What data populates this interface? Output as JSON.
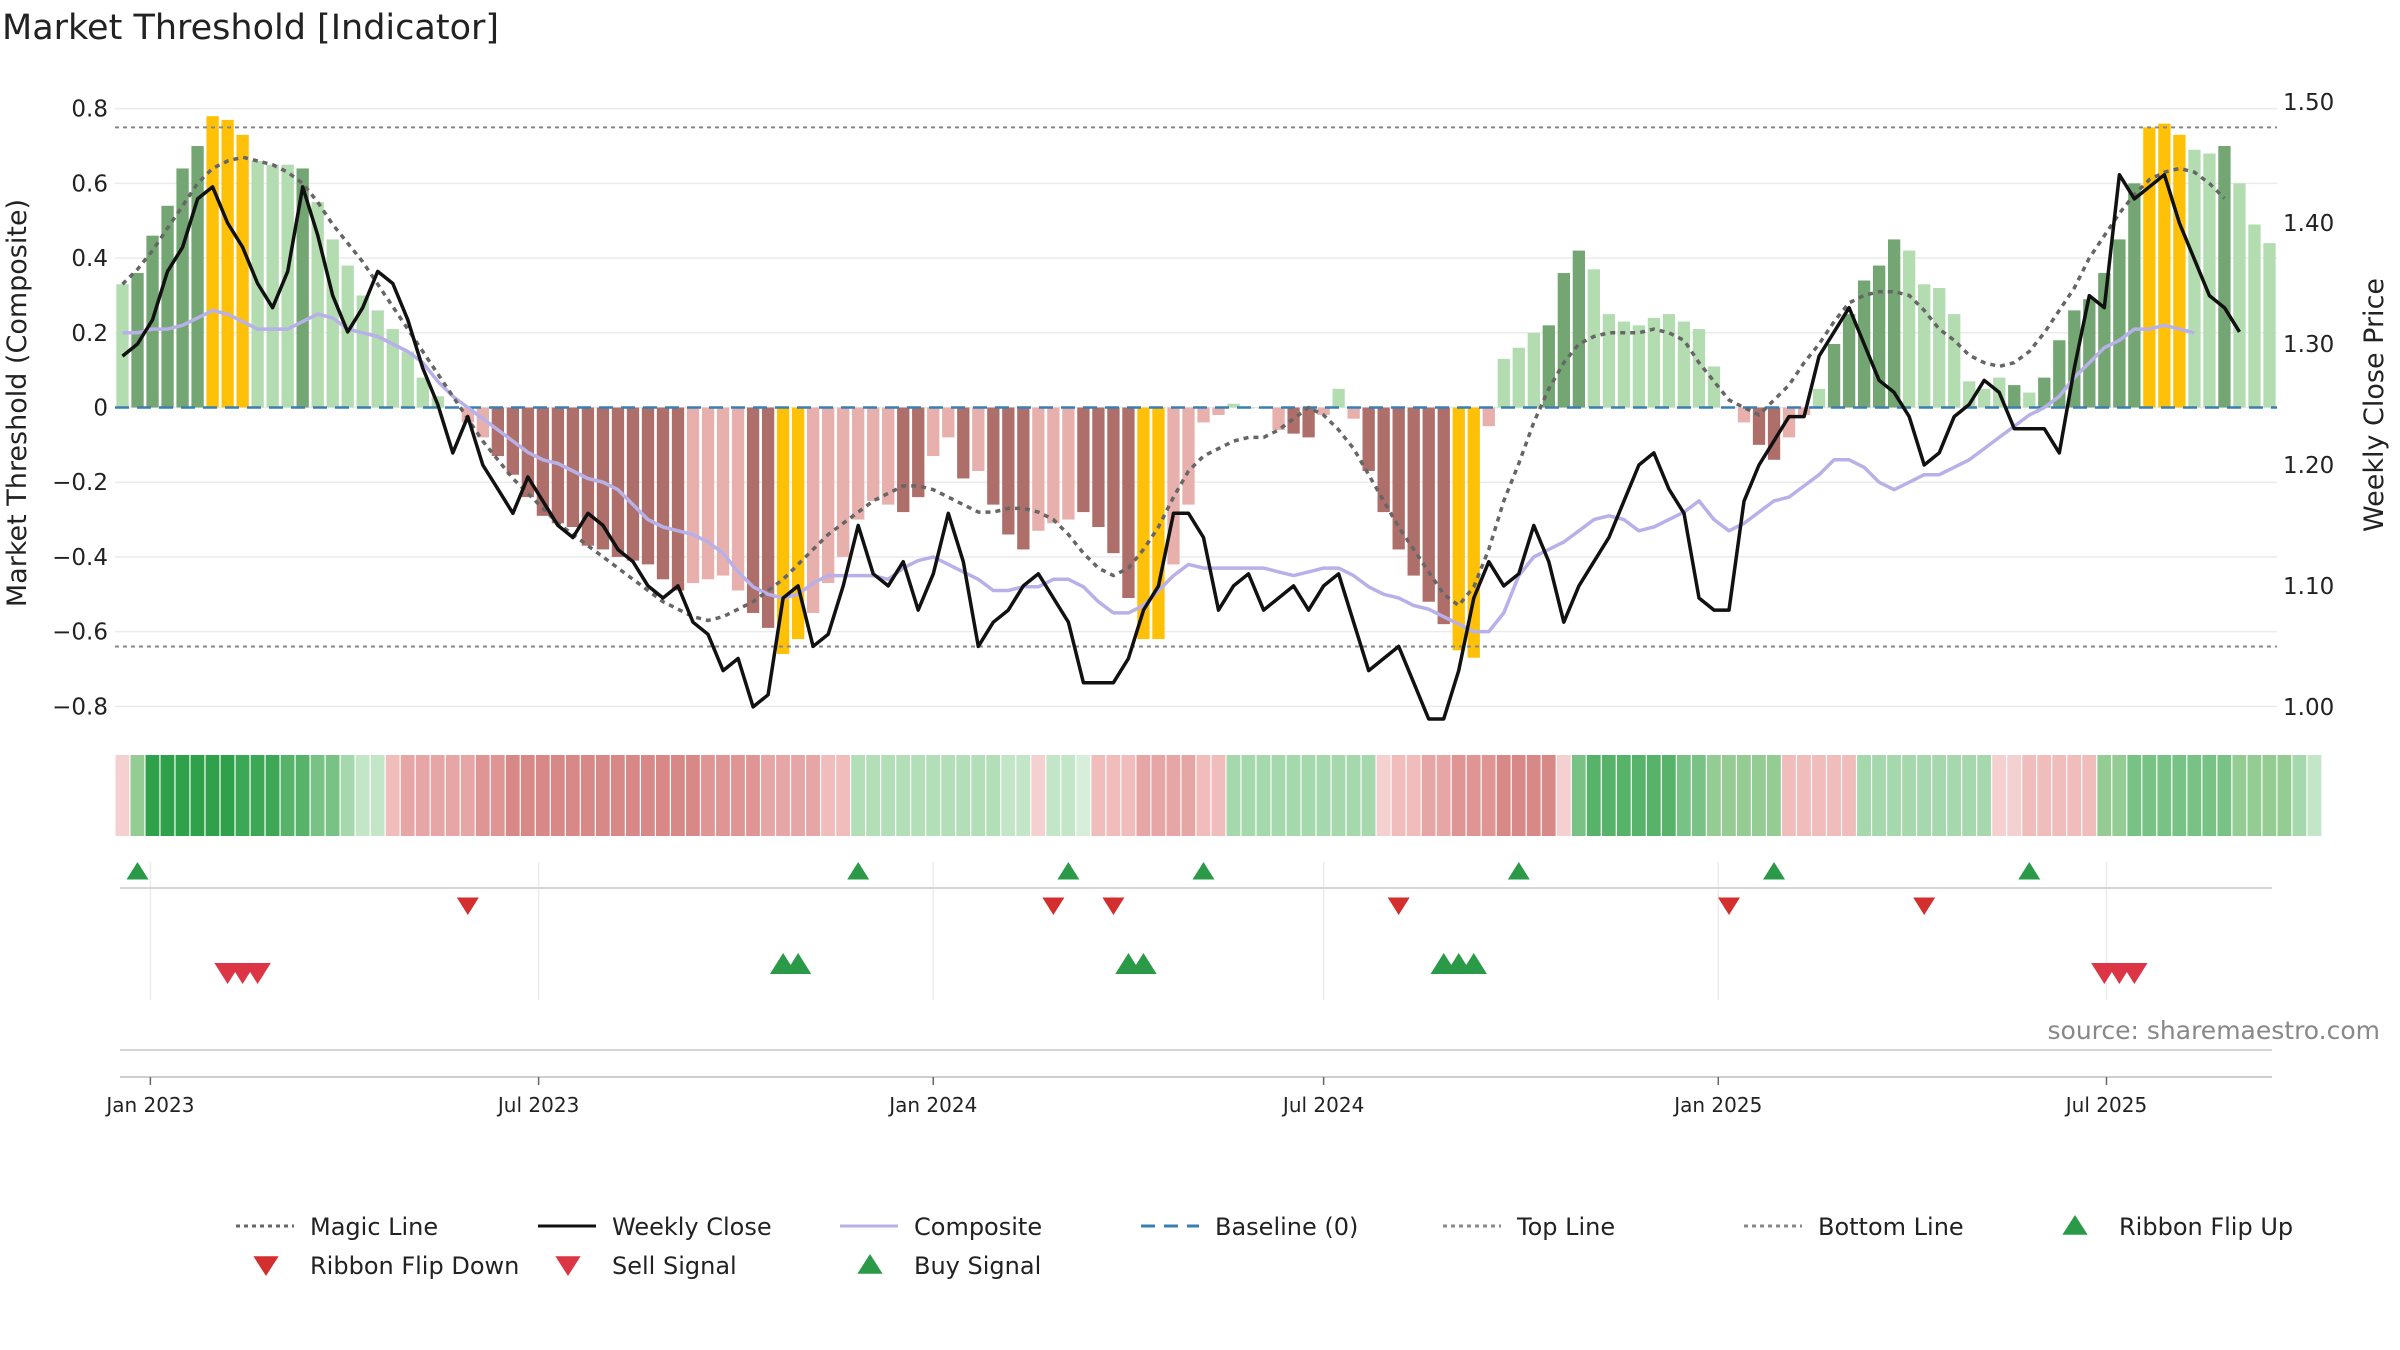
{
  "chart_data": {
    "type": "bar",
    "title": "Market Threshold [Indicator]",
    "ylabel_left": "Market Threshold (Composite)",
    "ylabel_right": "Weekly Close Price",
    "source": "source: sharemaestro.com",
    "ylim_left": [
      -0.85,
      0.85
    ],
    "ylim_right": [
      0.985,
      1.51
    ],
    "y_ticks_left": [
      {
        "v": 0.8,
        "label": "0.8"
      },
      {
        "v": 0.6,
        "label": "0.6"
      },
      {
        "v": 0.4,
        "label": "0.4"
      },
      {
        "v": 0.2,
        "label": "0.2"
      },
      {
        "v": 0,
        "label": "0"
      },
      {
        "v": -0.2,
        "label": "−0.2"
      },
      {
        "v": -0.4,
        "label": "−0.4"
      },
      {
        "v": -0.6,
        "label": "−0.6"
      },
      {
        "v": -0.8,
        "label": "−0.8"
      }
    ],
    "y_ticks_right": [
      {
        "v": 1.5,
        "label": "1.50"
      },
      {
        "v": 1.4,
        "label": "1.40"
      },
      {
        "v": 1.3,
        "label": "1.30"
      },
      {
        "v": 1.2,
        "label": "1.20"
      },
      {
        "v": 1.1,
        "label": "1.10"
      },
      {
        "v": 1.0,
        "label": "1.00"
      }
    ],
    "x_start": "2022-12-19",
    "x_ticks": [
      {
        "date": "2023-01-01",
        "label": "Jan 2023"
      },
      {
        "date": "2023-07-01",
        "label": "Jul 2023"
      },
      {
        "date": "2024-01-01",
        "label": "Jan 2024"
      },
      {
        "date": "2024-07-01",
        "label": "Jul 2024"
      },
      {
        "date": "2025-01-01",
        "label": "Jan 2025"
      },
      {
        "date": "2025-07-01",
        "label": "Jul 2025"
      }
    ],
    "top_line": 0.75,
    "bottom_line": -0.64,
    "baseline": 0,
    "composite": [
      0.33,
      0.36,
      0.46,
      0.54,
      0.64,
      0.7,
      0.78,
      0.77,
      0.73,
      0.66,
      0.65,
      0.65,
      0.64,
      0.55,
      0.45,
      0.38,
      0.3,
      0.26,
      0.21,
      0.15,
      0.08,
      0.03,
      0.0,
      -0.04,
      -0.08,
      -0.13,
      -0.18,
      -0.24,
      -0.29,
      -0.31,
      -0.32,
      -0.37,
      -0.38,
      -0.4,
      -0.41,
      -0.42,
      -0.46,
      -0.49,
      -0.47,
      -0.46,
      -0.45,
      -0.49,
      -0.55,
      -0.59,
      -0.66,
      -0.62,
      -0.55,
      -0.47,
      -0.4,
      -0.3,
      -0.25,
      -0.26,
      -0.28,
      -0.24,
      -0.13,
      -0.08,
      -0.19,
      -0.17,
      -0.26,
      -0.34,
      -0.38,
      -0.33,
      -0.31,
      -0.3,
      -0.28,
      -0.32,
      -0.39,
      -0.51,
      -0.62,
      -0.62,
      -0.42,
      -0.26,
      -0.04,
      -0.02,
      0.01,
      0.0,
      0.0,
      -0.06,
      -0.07,
      -0.08,
      -0.02,
      0.05,
      -0.03,
      -0.17,
      -0.28,
      -0.38,
      -0.45,
      -0.52,
      -0.58,
      -0.65,
      -0.67,
      -0.05,
      0.13,
      0.16,
      0.2,
      0.22,
      0.36,
      0.42,
      0.37,
      0.25,
      0.23,
      0.22,
      0.24,
      0.25,
      0.23,
      0.21,
      0.11,
      0.0,
      -0.04,
      -0.1,
      -0.14,
      -0.08,
      -0.02,
      0.05,
      0.17,
      0.25,
      0.34,
      0.38,
      0.45,
      0.42,
      0.33,
      0.32,
      0.25,
      0.07,
      0.05,
      0.08,
      0.06,
      0.04,
      0.08,
      0.18,
      0.26,
      0.29,
      0.36,
      0.45,
      0.6,
      0.75,
      0.76,
      0.73,
      0.69,
      0.68,
      0.7,
      0.6,
      0.49,
      0.44
    ],
    "bar_colors": [
      "#b4dcb1",
      "#74a673",
      "#74a673",
      "#74a673",
      "#74a673",
      "#74a673",
      "#ffc107",
      "#ffc107",
      "#ffc107",
      "#b4dcb1",
      "#b4dcb1",
      "#b4dcb1",
      "#74a673",
      "#b4dcb1",
      "#b4dcb1",
      "#b4dcb1",
      "#b4dcb1",
      "#b4dcb1",
      "#b4dcb1",
      "#b4dcb1",
      "#b4dcb1",
      "#b4dcb1",
      "#e8b0ac",
      "#e8b0ac",
      "#e8b0ac",
      "#ae6f6b",
      "#ae6f6b",
      "#ae6f6b",
      "#ae6f6b",
      "#ae6f6b",
      "#ae6f6b",
      "#ae6f6b",
      "#ae6f6b",
      "#ae6f6b",
      "#ae6f6b",
      "#ae6f6b",
      "#ae6f6b",
      "#ae6f6b",
      "#e8b0ac",
      "#e8b0ac",
      "#e8b0ac",
      "#e8b0ac",
      "#ae6f6b",
      "#ae6f6b",
      "#ffc107",
      "#ffc107",
      "#e8b0ac",
      "#e8b0ac",
      "#e8b0ac",
      "#e8b0ac",
      "#e8b0ac",
      "#e8b0ac",
      "#ae6f6b",
      "#ae6f6b",
      "#e8b0ac",
      "#e8b0ac",
      "#ae6f6b",
      "#e8b0ac",
      "#ae6f6b",
      "#ae6f6b",
      "#ae6f6b",
      "#e8b0ac",
      "#e8b0ac",
      "#e8b0ac",
      "#ae6f6b",
      "#ae6f6b",
      "#ae6f6b",
      "#ae6f6b",
      "#ffc107",
      "#ffc107",
      "#e8b0ac",
      "#e8b0ac",
      "#e8b0ac",
      "#e8b0ac",
      "#b4dcb1",
      "#b4dcb1",
      "#e8b0ac",
      "#e8b0ac",
      "#ae6f6b",
      "#ae6f6b",
      "#e8b0ac",
      "#b4dcb1",
      "#e8b0ac",
      "#ae6f6b",
      "#ae6f6b",
      "#ae6f6b",
      "#ae6f6b",
      "#ae6f6b",
      "#ae6f6b",
      "#ffc107",
      "#ffc107",
      "#e8b0ac",
      "#b4dcb1",
      "#b4dcb1",
      "#b4dcb1",
      "#74a673",
      "#74a673",
      "#74a673",
      "#b4dcb1",
      "#b4dcb1",
      "#b4dcb1",
      "#b4dcb1",
      "#b4dcb1",
      "#b4dcb1",
      "#b4dcb1",
      "#b4dcb1",
      "#b4dcb1",
      "#e8b0ac",
      "#e8b0ac",
      "#ae6f6b",
      "#ae6f6b",
      "#e8b0ac",
      "#e8b0ac",
      "#b4dcb1",
      "#74a673",
      "#74a673",
      "#74a673",
      "#74a673",
      "#74a673",
      "#b4dcb1",
      "#b4dcb1",
      "#b4dcb1",
      "#b4dcb1",
      "#b4dcb1",
      "#b4dcb1",
      "#b4dcb1",
      "#74a673",
      "#b4dcb1",
      "#74a673",
      "#74a673",
      "#74a673",
      "#74a673",
      "#74a673",
      "#74a673",
      "#74a673",
      "#ffc107",
      "#ffc107",
      "#ffc107",
      "#b4dcb1",
      "#b4dcb1",
      "#74a673",
      "#b4dcb1",
      "#b4dcb1",
      "#b4dcb1"
    ],
    "composite_line": [
      0.2,
      0.2,
      0.21,
      0.21,
      0.22,
      0.24,
      0.26,
      0.25,
      0.23,
      0.21,
      0.21,
      0.21,
      0.23,
      0.25,
      0.24,
      0.21,
      0.2,
      0.19,
      0.17,
      0.15,
      0.12,
      0.07,
      0.03,
      0.0,
      -0.03,
      -0.06,
      -0.09,
      -0.12,
      -0.14,
      -0.15,
      -0.17,
      -0.19,
      -0.2,
      -0.22,
      -0.26,
      -0.3,
      -0.32,
      -0.33,
      -0.34,
      -0.36,
      -0.39,
      -0.44,
      -0.48,
      -0.5,
      -0.51,
      -0.5,
      -0.47,
      -0.45,
      -0.45,
      -0.45,
      -0.45,
      -0.46,
      -0.43,
      -0.41,
      -0.4,
      -0.42,
      -0.44,
      -0.46,
      -0.49,
      -0.49,
      -0.48,
      -0.48,
      -0.46,
      -0.46,
      -0.48,
      -0.52,
      -0.55,
      -0.55,
      -0.53,
      -0.49,
      -0.45,
      -0.42,
      -0.43,
      -0.43,
      -0.43,
      -0.43,
      -0.43,
      -0.44,
      -0.45,
      -0.44,
      -0.43,
      -0.43,
      -0.45,
      -0.48,
      -0.5,
      -0.51,
      -0.53,
      -0.54,
      -0.56,
      -0.58,
      -0.6,
      -0.6,
      -0.55,
      -0.45,
      -0.4,
      -0.38,
      -0.36,
      -0.33,
      -0.3,
      -0.29,
      -0.3,
      -0.33,
      -0.32,
      -0.3,
      -0.28,
      -0.25,
      -0.3,
      -0.33,
      -0.31,
      -0.28,
      -0.25,
      -0.24,
      -0.21,
      -0.18,
      -0.14,
      -0.14,
      -0.16,
      -0.2,
      -0.22,
      -0.2,
      -0.18,
      -0.18,
      -0.16,
      -0.14,
      -0.11,
      -0.08,
      -0.05,
      -0.02,
      0.0,
      0.03,
      0.08,
      0.12,
      0.16,
      0.18,
      0.21,
      0.21,
      0.22,
      0.21,
      0.2
    ],
    "magic_line": [
      0.33,
      0.37,
      0.42,
      0.48,
      0.54,
      0.6,
      0.64,
      0.66,
      0.67,
      0.66,
      0.65,
      0.63,
      0.6,
      0.55,
      0.49,
      0.44,
      0.39,
      0.33,
      0.27,
      0.21,
      0.15,
      0.09,
      0.03,
      -0.03,
      -0.09,
      -0.14,
      -0.19,
      -0.23,
      -0.27,
      -0.31,
      -0.34,
      -0.37,
      -0.4,
      -0.43,
      -0.46,
      -0.49,
      -0.52,
      -0.54,
      -0.56,
      -0.57,
      -0.56,
      -0.54,
      -0.52,
      -0.49,
      -0.46,
      -0.42,
      -0.38,
      -0.34,
      -0.31,
      -0.28,
      -0.25,
      -0.23,
      -0.21,
      -0.21,
      -0.22,
      -0.24,
      -0.26,
      -0.28,
      -0.28,
      -0.27,
      -0.27,
      -0.28,
      -0.3,
      -0.34,
      -0.39,
      -0.43,
      -0.45,
      -0.43,
      -0.38,
      -0.32,
      -0.24,
      -0.17,
      -0.13,
      -0.11,
      -0.09,
      -0.08,
      -0.08,
      -0.06,
      -0.03,
      0.0,
      -0.02,
      -0.06,
      -0.11,
      -0.18,
      -0.25,
      -0.32,
      -0.38,
      -0.44,
      -0.5,
      -0.53,
      -0.48,
      -0.38,
      -0.25,
      -0.15,
      -0.04,
      0.05,
      0.12,
      0.17,
      0.19,
      0.2,
      0.2,
      0.2,
      0.21,
      0.2,
      0.18,
      0.12,
      0.07,
      0.02,
      0.0,
      -0.02,
      0.02,
      0.06,
      0.12,
      0.17,
      0.23,
      0.28,
      0.3,
      0.31,
      0.31,
      0.3,
      0.26,
      0.21,
      0.18,
      0.14,
      0.12,
      0.11,
      0.12,
      0.15,
      0.2,
      0.26,
      0.32,
      0.4,
      0.46,
      0.52,
      0.57,
      0.61,
      0.63,
      0.64,
      0.63,
      0.6,
      0.56
    ],
    "weekly_close": [
      1.29,
      1.3,
      1.32,
      1.36,
      1.38,
      1.42,
      1.43,
      1.4,
      1.38,
      1.35,
      1.33,
      1.36,
      1.43,
      1.39,
      1.34,
      1.31,
      1.33,
      1.36,
      1.35,
      1.32,
      1.28,
      1.25,
      1.21,
      1.24,
      1.2,
      1.18,
      1.16,
      1.19,
      1.17,
      1.15,
      1.14,
      1.16,
      1.15,
      1.13,
      1.12,
      1.1,
      1.09,
      1.1,
      1.07,
      1.06,
      1.03,
      1.04,
      1.0,
      1.01,
      1.09,
      1.1,
      1.05,
      1.06,
      1.1,
      1.15,
      1.11,
      1.1,
      1.12,
      1.08,
      1.11,
      1.16,
      1.12,
      1.05,
      1.07,
      1.08,
      1.1,
      1.11,
      1.09,
      1.07,
      1.02,
      1.02,
      1.02,
      1.04,
      1.08,
      1.1,
      1.16,
      1.16,
      1.14,
      1.08,
      1.1,
      1.11,
      1.08,
      1.09,
      1.1,
      1.08,
      1.1,
      1.11,
      1.07,
      1.03,
      1.04,
      1.05,
      1.02,
      0.99,
      0.99,
      1.03,
      1.09,
      1.12,
      1.1,
      1.11,
      1.15,
      1.12,
      1.07,
      1.1,
      1.12,
      1.14,
      1.17,
      1.2,
      1.21,
      1.18,
      1.16,
      1.09,
      1.08,
      1.08,
      1.17,
      1.2,
      1.22,
      1.24,
      1.24,
      1.29,
      1.31,
      1.33,
      1.3,
      1.27,
      1.26,
      1.24,
      1.2,
      1.21,
      1.24,
      1.25,
      1.27,
      1.26,
      1.23,
      1.23,
      1.23,
      1.21,
      1.28,
      1.34,
      1.33,
      1.44,
      1.42,
      1.43,
      1.44,
      1.4,
      1.37,
      1.34,
      1.33,
      1.31
    ],
    "ribbon_colors": [
      "#f5d0d0",
      "#94cc94",
      "#2ea14a",
      "#2ea14a",
      "#2ea14a",
      "#2ea14a",
      "#2ea14a",
      "#2ea14a",
      "#3ca855",
      "#3ca855",
      "#3ca855",
      "#58b36a",
      "#58b36a",
      "#79c286",
      "#79c286",
      "#a6d8ad",
      "#c4e6c8",
      "#c4e6c8",
      "#f0bcbc",
      "#e6a6a6",
      "#e6a6a6",
      "#e6a6a6",
      "#e6a6a6",
      "#e6a6a6",
      "#e09595",
      "#e09595",
      "#d98888",
      "#d98888",
      "#d98888",
      "#d98888",
      "#d98888",
      "#d98888",
      "#d98888",
      "#d98888",
      "#d98888",
      "#d98888",
      "#d98888",
      "#d98888",
      "#d98888",
      "#e09595",
      "#e09595",
      "#e09595",
      "#e09595",
      "#e6a6a6",
      "#e6a6a6",
      "#e6a6a6",
      "#e6a6a6",
      "#f0bcbc",
      "#f0bcbc",
      "#b3dfb8",
      "#b3dfb8",
      "#b3dfb8",
      "#b3dfb8",
      "#b3dfb8",
      "#b3dfb8",
      "#b3dfb8",
      "#b3dfb8",
      "#b3dfb8",
      "#b3dfb8",
      "#c4e6c8",
      "#c4e6c8",
      "#f5d0d0",
      "#c4e6c8",
      "#c4e6c8",
      "#d7eedb",
      "#f0bcbc",
      "#f0bcbc",
      "#f0bcbc",
      "#e6a6a6",
      "#e6a6a6",
      "#e6a6a6",
      "#e6a6a6",
      "#f0bcbc",
      "#f0bcbc",
      "#a6d8ad",
      "#a6d8ad",
      "#a6d8ad",
      "#a6d8ad",
      "#a6d8ad",
      "#a6d8ad",
      "#a6d8ad",
      "#a6d8ad",
      "#a6d8ad",
      "#a6d8ad",
      "#f5d0d0",
      "#f0bcbc",
      "#f0bcbc",
      "#e6a6a6",
      "#e6a6a6",
      "#e09595",
      "#e09595",
      "#e09595",
      "#d98888",
      "#d98888",
      "#d98888",
      "#d98888",
      "#f5d0d0",
      "#79c286",
      "#58b36a",
      "#58b36a",
      "#58b36a",
      "#58b36a",
      "#58b36a",
      "#58b36a",
      "#79c286",
      "#79c286",
      "#94cc94",
      "#94cc94",
      "#94cc94",
      "#94cc94",
      "#94cc94",
      "#f0bcbc",
      "#f0bcbc",
      "#f0bcbc",
      "#f0bcbc",
      "#f0bcbc",
      "#a6d8ad",
      "#a6d8ad",
      "#a6d8ad",
      "#a6d8ad",
      "#a6d8ad",
      "#a6d8ad",
      "#a6d8ad",
      "#a6d8ad",
      "#a6d8ad",
      "#f5d0d0",
      "#f5d0d0",
      "#f0bcbc",
      "#f0bcbc",
      "#f0bcbc",
      "#f0bcbc",
      "#f0bcbc",
      "#94cc94",
      "#94cc94",
      "#79c286",
      "#79c286",
      "#79c286",
      "#79c286",
      "#79c286",
      "#79c286",
      "#79c286",
      "#94cc94",
      "#94cc94",
      "#94cc94",
      "#94cc94",
      "#a6d8ad",
      "#c4e6c8"
    ],
    "ribbon_flip_up": [
      "2022-12-26",
      "2023-11-27",
      "2024-03-04",
      "2024-05-06",
      "2024-09-30",
      "2025-01-27",
      "2025-05-26"
    ],
    "ribbon_flip_down": [
      "2023-05-29",
      "2024-02-26",
      "2024-03-25",
      "2024-08-05",
      "2025-01-06",
      "2025-04-07"
    ],
    "sell_signal": [
      "2023-02-06",
      "2023-02-13",
      "2023-02-20",
      "2025-06-30",
      "2025-07-07",
      "2025-07-14"
    ],
    "buy_signal": [
      "2023-10-23",
      "2023-10-30",
      "2024-04-01",
      "2024-04-08",
      "2024-08-26",
      "2024-09-02",
      "2024-09-09"
    ],
    "legend": [
      {
        "label": "Magic Line",
        "kind": "dotted",
        "color": "#666666"
      },
      {
        "label": "Weekly Close",
        "kind": "solid",
        "color": "#111111"
      },
      {
        "label": "Composite",
        "kind": "solid",
        "color": "#b8b0e8"
      },
      {
        "label": "Baseline (0)",
        "kind": "dashed",
        "color": "#3a7fb0"
      },
      {
        "label": "Top Line",
        "kind": "dotted",
        "color": "#888888"
      },
      {
        "label": "Bottom Line",
        "kind": "dotted",
        "color": "#888888"
      },
      {
        "label": "Ribbon Flip Up",
        "kind": "tri-up",
        "color": "#2b9a48"
      },
      {
        "label": "Ribbon Flip Down",
        "kind": "tri-down",
        "color": "#d32f2f"
      },
      {
        "label": "Sell Signal",
        "kind": "tri-down",
        "color": "#dc3545"
      },
      {
        "label": "Buy Signal",
        "kind": "tri-up",
        "color": "#2b9a48"
      }
    ]
  }
}
